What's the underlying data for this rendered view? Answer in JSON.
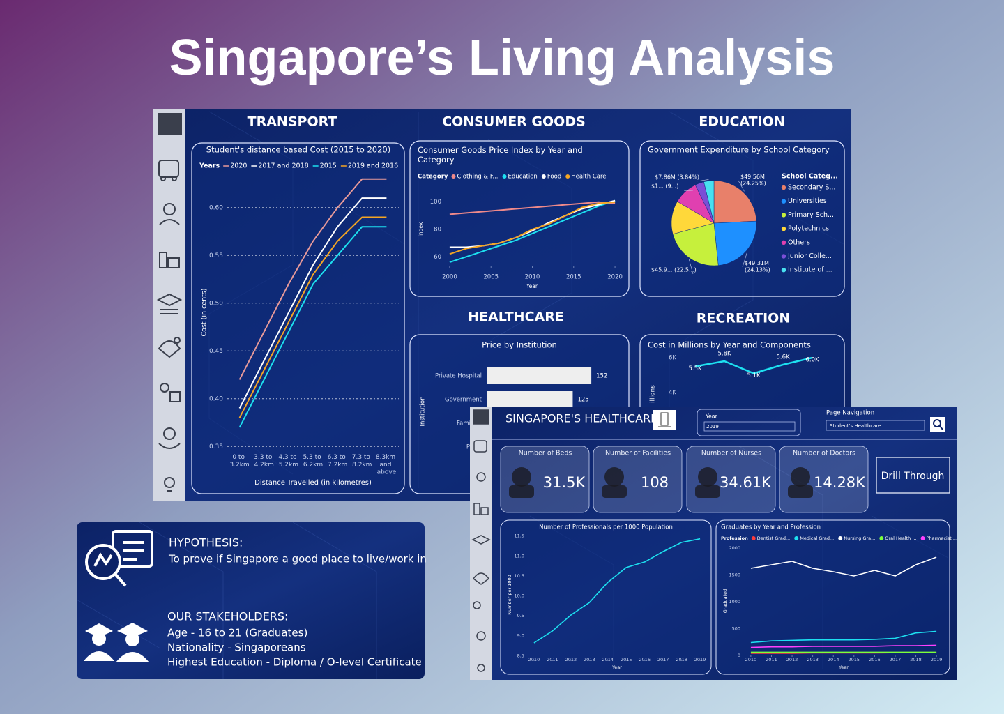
{
  "title": "Singapore’s Living Analysis",
  "sections": [
    "TRANSPORT",
    "CONSUMER GOODS",
    "EDUCATION",
    "HEALTHCARE",
    "RECREATION"
  ],
  "hypothesis": {
    "heading": "HYPOTHESIS:",
    "text": "To prove if Singapore a good place to live/work in"
  },
  "stakeholders": {
    "heading": "OUR STAKEHOLDERS:",
    "lines": [
      "Age - 16 to 21 (Graduates)",
      "Nationality - Singaporeans",
      "Highest Education - Diploma / O-level Certificate"
    ]
  },
  "healthcare_page": {
    "title": "SINGAPORE'S HEALTHCARE",
    "year_label": "Year",
    "year": "2019",
    "nav_label": "Page Navigation",
    "nav": "Student's Healthcare",
    "kpis": [
      {
        "label": "Number of Beds",
        "value": "31.5K"
      },
      {
        "label": "Number of Facilities",
        "value": "108"
      },
      {
        "label": "Number of Nurses",
        "value": "34.61K"
      },
      {
        "label": "Number of Doctors",
        "value": "14.28K"
      }
    ],
    "button": "Drill Through"
  },
  "chart_data": [
    {
      "type": "line",
      "title": "Student's distance based Cost (2015 to 2020)",
      "legend_title": "Years",
      "x_label": "Distance Travelled (in kilometres)",
      "y_label": "Cost (in cents)",
      "categories": [
        "0 to 3.2km",
        "3.3 to 4.2km",
        "4.3 to 5.2km",
        "5.3 to 6.2km",
        "6.3 to 7.2km",
        "7.3 to 8.2km",
        "8.3km and above"
      ],
      "series": [
        {
          "name": "2020",
          "color": "#e89a9a",
          "values": [
            0.42,
            0.47,
            0.52,
            0.565,
            0.6,
            0.63,
            0.63
          ]
        },
        {
          "name": "2017 and 2018",
          "color": "#ffffff",
          "values": [
            0.39,
            0.44,
            0.49,
            0.54,
            0.58,
            0.61,
            0.61
          ]
        },
        {
          "name": "2015",
          "color": "#1de0f0",
          "values": [
            0.37,
            0.42,
            0.47,
            0.52,
            0.55,
            0.58,
            0.58
          ]
        },
        {
          "name": "2019 and 2016",
          "color": "#f5a623",
          "values": [
            0.38,
            0.43,
            0.48,
            0.53,
            0.565,
            0.59,
            0.59
          ]
        }
      ],
      "ylim": [
        0.34,
        0.64
      ],
      "yticks": [
        0.35,
        {
          "value": 0.4,
          "label": "0.40"
        },
        0.45,
        {
          "value": 0.5,
          "label": "0.50"
        },
        0.55,
        {
          "value": 0.6,
          "label": "0.60"
        }
      ],
      "grid": true
    },
    {
      "type": "line",
      "title": "Consumer Goods Price Index by Year and Category",
      "legend_title": "Category",
      "x_label": "Year",
      "y_label": "Index",
      "x": [
        2000,
        2002,
        2004,
        2006,
        2008,
        2010,
        2012,
        2014,
        2016,
        2018,
        2020
      ],
      "series": [
        {
          "name": "Clothing & F...",
          "color": "#f08a8a",
          "values": [
            91,
            92,
            93,
            94,
            95,
            96,
            97,
            98,
            99,
            100,
            99
          ]
        },
        {
          "name": "Education",
          "color": "#1de0f0",
          "values": [
            56,
            60,
            64,
            68,
            72,
            77,
            82,
            87,
            92,
            97,
            101
          ]
        },
        {
          "name": "Food",
          "color": "#ffffff",
          "values": [
            67,
            67,
            68,
            70,
            74,
            79,
            85,
            90,
            95,
            98,
            101
          ]
        },
        {
          "name": "Health Care",
          "color": "#f5a623",
          "values": [
            62,
            66,
            68,
            70,
            74,
            80,
            84,
            90,
            96,
            99,
            100
          ]
        }
      ],
      "xlim": [
        1999.5,
        2020.5
      ],
      "xticks": [
        2000,
        2005,
        2010,
        2015,
        2020
      ],
      "ylim": [
        53,
        108
      ],
      "yticks": [
        60,
        80,
        100
      ],
      "grid": false
    },
    {
      "type": "pie",
      "title": "Government Expenditure by School Category",
      "legend_title": "School Categ...",
      "categories": [
        "Secondary S...",
        "Universities",
        "Primary Sch...",
        "Polytechnics",
        "Others",
        "Junior Colle...",
        "Institute of ..."
      ],
      "values": [
        49.56,
        49.31,
        45.95,
        25.8,
        19,
        6.92,
        7.86
      ],
      "value_labels": [
        "$49.56M (24.25%)",
        "$49.31M (24.13%)",
        "$45.9... (22.5...)",
        null,
        "$1... (9...)",
        null,
        "$7.86M (3.84%)"
      ],
      "colors": [
        "#e8806a",
        "#1e90ff",
        "#c6f03c",
        "#ffd83a",
        "#e040b0",
        "#7b4fd6",
        "#48e0f0"
      ]
    },
    {
      "type": "bar",
      "orientation": "horizontal",
      "title": "Price by Institution",
      "y_label": "Institution",
      "categories": [
        "Private Hospital",
        "Government",
        "Family C",
        "Polyc"
      ],
      "values": [
        152,
        125,
        null,
        null
      ],
      "color": "#eeeeee",
      "xlim": [
        0,
        160
      ]
    },
    {
      "type": "line",
      "title": "Cost in Millions by Year and Components",
      "y_label": "illions",
      "categories": [
        null,
        null,
        null,
        null,
        null
      ],
      "values": [
        5500,
        5800,
        5100,
        5600,
        6000
      ],
      "value_labels": [
        "5.5K",
        "5.8K",
        "5.1K",
        "5.6K",
        "6.0K"
      ],
      "color": "#1de0f0",
      "ylim": [
        3000,
        6400
      ],
      "yticks": [
        {
          "value": 4000,
          "label": "4K"
        },
        {
          "value": 6000,
          "label": "6K"
        }
      ],
      "grid": false
    },
    {
      "type": "line",
      "title": "Number of Professionals per 1000 Population",
      "x_label": "Year",
      "y_label": "Number per 1000",
      "x": [
        2010,
        2011,
        2012,
        2013,
        2014,
        2015,
        2016,
        2017,
        2018,
        2019
      ],
      "values": [
        8.82,
        9.12,
        9.52,
        9.83,
        10.34,
        10.71,
        10.85,
        11.11,
        11.34,
        11.43
      ],
      "color": "#1de0f0",
      "xlim": [
        2009.7,
        2019.3
      ],
      "xticks": [
        2010,
        2011,
        2012,
        2013,
        2014,
        2015,
        2016,
        2017,
        2018,
        2019
      ],
      "ylim": [
        8.4,
        11.6
      ],
      "yticks": [
        8.5,
        {
          "value": 9,
          "label": "9.0"
        },
        9.5,
        {
          "value": 10,
          "label": "10.0"
        },
        10.5,
        {
          "value": 11,
          "label": "11.0"
        },
        11.5
      ],
      "grid": false
    },
    {
      "type": "line",
      "title": "Graduates by Year and Profession",
      "legend_title": "Profession",
      "x_label": "Year",
      "y_label": "Graduated",
      "x": [
        2010,
        2011,
        2012,
        2013,
        2014,
        2015,
        2016,
        2017,
        2018,
        2019
      ],
      "series": [
        {
          "name": "Dentist Grad...",
          "color": "#ff3b3b",
          "values": [
            40,
            40,
            40,
            45,
            45,
            45,
            45,
            50,
            50,
            50
          ]
        },
        {
          "name": "Medical Grad...",
          "color": "#1de0f0",
          "values": [
            240,
            270,
            280,
            290,
            290,
            290,
            300,
            320,
            420,
            450
          ]
        },
        {
          "name": "Nursing Gra...",
          "color": "#ffffff",
          "values": [
            1623,
            1688,
            1753,
            1623,
            1558,
            1480,
            1584,
            1480,
            1688,
            1831
          ]
        },
        {
          "name": "Oral Health ...",
          "color": "#7cff3b",
          "values": [
            60,
            60,
            60,
            60,
            60,
            60,
            60,
            60,
            60,
            60
          ]
        },
        {
          "name": "Pharmacist ...",
          "color": "#ff40ff",
          "values": [
            150,
            160,
            160,
            170,
            170,
            170,
            170,
            180,
            180,
            190
          ]
        }
      ],
      "xlim": [
        2009.7,
        2019.3
      ],
      "xticks": [
        2010,
        2011,
        2012,
        2013,
        2014,
        2015,
        2016,
        2017,
        2018,
        2019
      ],
      "ylim": [
        0,
        2000
      ],
      "yticks": [
        0,
        500,
        1000,
        1500,
        2000
      ],
      "grid": false
    }
  ]
}
